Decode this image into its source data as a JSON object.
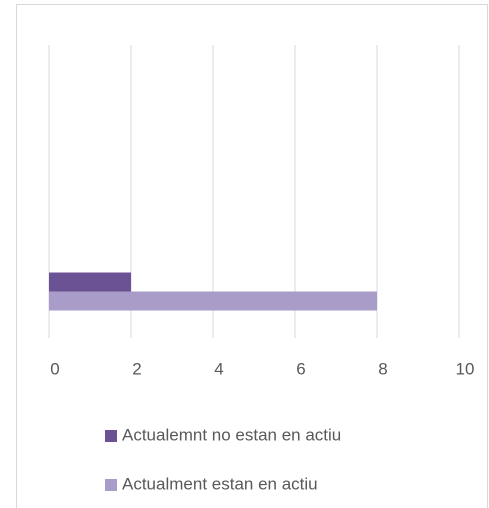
{
  "chart_data": {
    "type": "bar",
    "orientation": "horizontal",
    "categories": [
      null
    ],
    "series": [
      {
        "name": "Actualemnt no estan en actiu",
        "color": "#6b5294",
        "values": [
          2
        ]
      },
      {
        "name": "Actualment estan en actiu",
        "color": "#aa9cc9",
        "values": [
          8
        ]
      }
    ],
    "xlim": [
      0,
      10
    ],
    "xticks": [
      0,
      2,
      4,
      6,
      8,
      10
    ],
    "grid": true,
    "legend": "bottom"
  }
}
